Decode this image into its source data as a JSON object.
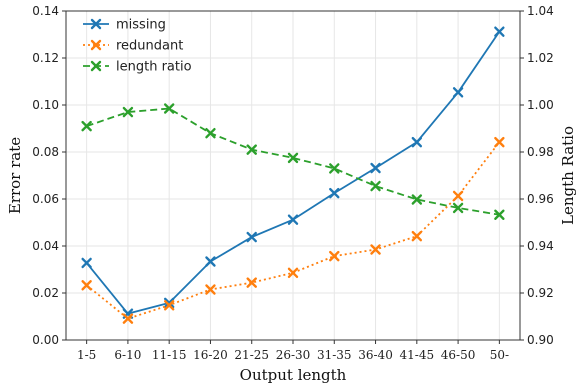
{
  "chart_data": {
    "type": "line",
    "categories": [
      "1-5",
      "6-10",
      "11-15",
      "16-20",
      "21-25",
      "26-30",
      "31-35",
      "36-40",
      "41-45",
      "46-50",
      "50-"
    ],
    "xlabel": "Output length",
    "ylabel": "Error rate",
    "ylabel_right": "Length Ratio",
    "ylim": [
      0.0,
      0.14
    ],
    "ylim_right": [
      0.9,
      1.04
    ],
    "yticks": [
      "0.00",
      "0.02",
      "0.04",
      "0.06",
      "0.08",
      "0.10",
      "0.12",
      "0.14"
    ],
    "yticks_right": [
      "0.90",
      "0.92",
      "0.94",
      "0.96",
      "0.98",
      "1.00",
      "1.02",
      "1.04"
    ],
    "grid": true,
    "legend_position": "top-left",
    "series": [
      {
        "name": "missing",
        "axis": "left",
        "color": "#1f77b4",
        "linestyle": "solid",
        "marker": "x",
        "values": [
          0.0328,
          0.0112,
          0.0158,
          0.0334,
          0.0438,
          0.0512,
          0.0625,
          0.0732,
          0.0842,
          0.1054,
          0.1312
        ]
      },
      {
        "name": "redundant",
        "axis": "left",
        "color": "#ff7f0e",
        "linestyle": "dotted",
        "marker": "x",
        "values": [
          0.0233,
          0.0091,
          0.0148,
          0.0215,
          0.0244,
          0.0286,
          0.0357,
          0.0385,
          0.0442,
          0.0613,
          0.0842
        ]
      },
      {
        "name": "length ratio",
        "axis": "right",
        "color": "#2ca02c",
        "linestyle": "dashed",
        "marker": "x",
        "values": [
          0.991,
          0.997,
          0.9985,
          0.988,
          0.981,
          0.9775,
          0.973,
          0.9655,
          0.9598,
          0.9562,
          0.9533
        ]
      }
    ]
  }
}
